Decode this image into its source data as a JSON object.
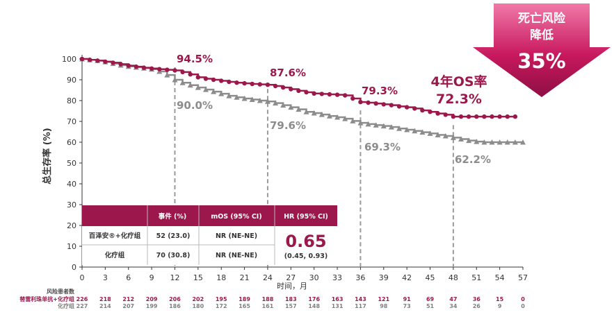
{
  "chart_data": {
    "type": "line",
    "ylabel": "总生存率 (%)",
    "xlabel": "时间，月",
    "xlim": [
      0,
      57
    ],
    "ylim": [
      0,
      100
    ],
    "xticks": [
      0,
      3,
      6,
      9,
      12,
      15,
      18,
      21,
      24,
      27,
      30,
      33,
      36,
      39,
      42,
      45,
      48,
      51,
      54,
      57
    ],
    "yticks": [
      0,
      10,
      20,
      30,
      40,
      50,
      60,
      70,
      80,
      90,
      100
    ],
    "series": [
      {
        "name": "百泽安®+化疗组",
        "color": "#9c174b",
        "marker": "circle",
        "x": [
          0,
          1,
          2,
          3,
          4,
          5,
          6,
          7,
          8,
          9,
          10,
          11,
          12,
          13,
          14,
          15,
          16,
          17,
          18,
          19,
          20,
          21,
          22,
          23,
          24,
          25,
          26,
          27,
          28,
          29,
          30,
          31,
          32,
          33,
          34,
          35,
          36,
          37,
          38,
          39,
          40,
          41,
          42,
          43,
          44,
          45,
          46,
          47,
          48,
          49,
          50,
          51,
          52,
          53,
          54,
          55,
          56
        ],
        "y": [
          100,
          99.6,
          99.2,
          98.7,
          98.2,
          97.5,
          96.8,
          96.3,
          95.8,
          95.4,
          95.1,
          94.8,
          94.5,
          93.7,
          92.6,
          91.2,
          90.5,
          90.0,
          89.5,
          89.0,
          88.6,
          88.3,
          88.0,
          87.8,
          87.6,
          87.0,
          86.3,
          85.5,
          84.7,
          84.0,
          83.4,
          83.2,
          83.0,
          82.8,
          82.5,
          81.0,
          79.3,
          79.0,
          78.6,
          78.2,
          77.8,
          77.2,
          76.8,
          76.2,
          75.3,
          74.6,
          73.8,
          73.2,
          72.3,
          72.3,
          72.3,
          72.3,
          72.3,
          72.3,
          72.3,
          72.3,
          72.3
        ]
      },
      {
        "name": "化疗组",
        "color": "#8c8c8c",
        "marker": "triangle",
        "x": [
          0,
          1,
          2,
          3,
          4,
          5,
          6,
          7,
          8,
          9,
          10,
          11,
          12,
          13,
          14,
          15,
          16,
          17,
          18,
          19,
          20,
          21,
          22,
          23,
          24,
          25,
          26,
          27,
          28,
          29,
          30,
          31,
          32,
          33,
          34,
          35,
          36,
          37,
          38,
          39,
          40,
          41,
          42,
          43,
          44,
          45,
          46,
          47,
          48,
          49,
          50,
          51,
          52,
          53,
          54,
          55,
          56,
          57
        ],
        "y": [
          100,
          99.6,
          99.2,
          98.6,
          97.8,
          97.0,
          96.4,
          96.0,
          95.6,
          95.1,
          94.0,
          92.3,
          90.0,
          88.6,
          87.4,
          86.3,
          85.3,
          84.3,
          83.3,
          82.3,
          81.6,
          81.0,
          80.5,
          80.0,
          79.6,
          78.8,
          77.8,
          76.8,
          75.8,
          74.6,
          74.0,
          73.3,
          72.6,
          72.0,
          71.3,
          70.2,
          69.3,
          68.7,
          68.2,
          67.8,
          67.3,
          66.6,
          66.0,
          65.4,
          64.8,
          64.2,
          63.5,
          63.0,
          62.2,
          61.5,
          60.8,
          60.3,
          60.0,
          60.0,
          60.0,
          60.0,
          60.0,
          60.0
        ]
      }
    ],
    "annotations": {
      "m12": {
        "x": 12,
        "treat_label": "94.5%",
        "treat_y": 94.5,
        "ctrl_label": "90.0%",
        "ctrl_y": 90.0
      },
      "m24": {
        "x": 24,
        "treat_label": "87.6%",
        "treat_y": 87.6,
        "ctrl_label": "79.6%",
        "ctrl_y": 79.6
      },
      "m36": {
        "x": 36,
        "treat_label": "79.3%",
        "treat_y": 79.3,
        "ctrl_label": "69.3%",
        "ctrl_y": 69.3
      },
      "m48": {
        "x": 48,
        "os_title": "4年OS率",
        "treat_label": "72.3%",
        "treat_y": 72.3,
        "ctrl_label": "62.2%",
        "ctrl_y": 62.2
      }
    },
    "risk_table": {
      "title": "风险患者数",
      "rows": [
        {
          "name": "替雷利珠单抗+化疗组",
          "color": "#9c174b",
          "values": [
            "226",
            "218",
            "212",
            "209",
            "206",
            "202",
            "195",
            "189",
            "188",
            "183",
            "176",
            "163",
            "143",
            "121",
            "91",
            "69",
            "47",
            "36",
            "15",
            "0"
          ]
        },
        {
          "name": "化疗组",
          "color": "#7f7f7f",
          "values": [
            "227",
            "214",
            "207",
            "199",
            "186",
            "180",
            "172",
            "165",
            "161",
            "157",
            "148",
            "131",
            "117",
            "98",
            "73",
            "51",
            "34",
            "26",
            "9",
            "0"
          ]
        }
      ]
    },
    "summary_table": {
      "headers": [
        "",
        "事件 (%)",
        "mOS (95% CI)",
        "HR (95% CI)"
      ],
      "rows": [
        [
          "百泽安®+化疗组",
          "52 (23.0)",
          "NR (NE-NE)"
        ],
        [
          "化疗组",
          "70 (30.8)",
          "NR (NE-NE)"
        ]
      ],
      "hr": "0.65",
      "hr_ci": "(0.45, 0.93)"
    },
    "badge": {
      "line1": "死亡风险",
      "line2": "降低",
      "value": "35%"
    }
  },
  "colors": {
    "treat": "#9c174b",
    "ctrl": "#8c8c8c",
    "header_bg": "#9c174b"
  }
}
